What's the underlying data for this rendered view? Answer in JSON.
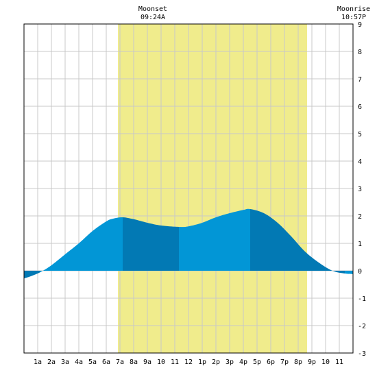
{
  "chart_data": {
    "type": "area",
    "title": "",
    "xlabel": "",
    "ylabel": "",
    "xlim": [
      0,
      24
    ],
    "ylim": [
      -3,
      9
    ],
    "grid": true,
    "x_tick_labels": [
      "1a",
      "2a",
      "3a",
      "4a",
      "5a",
      "6a",
      "7a",
      "8a",
      "9a",
      "10",
      "11",
      "12",
      "1p",
      "2p",
      "3p",
      "4p",
      "5p",
      "6p",
      "7p",
      "8p",
      "9p",
      "10",
      "11"
    ],
    "y_ticks": [
      -3,
      -2,
      -1,
      0,
      1,
      2,
      3,
      4,
      5,
      6,
      7,
      8,
      9
    ],
    "daylight": {
      "start": 6.85,
      "end": 20.65
    },
    "events": [
      {
        "name": "Moonset",
        "time": "09:24A",
        "hour": 9.4
      },
      {
        "name": "Moonrise",
        "time": "10:57P",
        "hour": 22.95
      }
    ],
    "tide_extremes": [
      {
        "hour": 1.2,
        "height": -0.05
      },
      {
        "hour": 7.2,
        "height": 1.95
      },
      {
        "hour": 11.3,
        "height": 1.6
      },
      {
        "hour": 16.5,
        "height": 2.25
      },
      {
        "hour": 23.4,
        "height": -0.1
      }
    ],
    "series": [
      {
        "x": [
          0,
          0.5,
          1.2,
          2,
          3,
          4,
          5,
          6,
          6.5,
          7.2,
          8,
          9,
          10,
          11.3,
          12,
          13,
          14,
          15,
          16,
          16.5,
          17.5,
          18.5,
          19.5,
          20.5,
          21.5,
          22.5,
          23.4,
          24
        ],
        "y": [
          -0.28,
          -0.2,
          -0.05,
          0.2,
          0.6,
          1.0,
          1.45,
          1.8,
          1.9,
          1.95,
          1.88,
          1.75,
          1.65,
          1.6,
          1.62,
          1.75,
          1.95,
          2.1,
          2.22,
          2.25,
          2.1,
          1.75,
          1.25,
          0.7,
          0.3,
          0.0,
          -0.1,
          -0.12
        ]
      }
    ],
    "colors": {
      "daylight": "#f0ec8c",
      "grid": "#c8c8c8",
      "tide_dark": "#0279b4",
      "tide_light": "#0296d6",
      "axis": "#000000"
    }
  }
}
